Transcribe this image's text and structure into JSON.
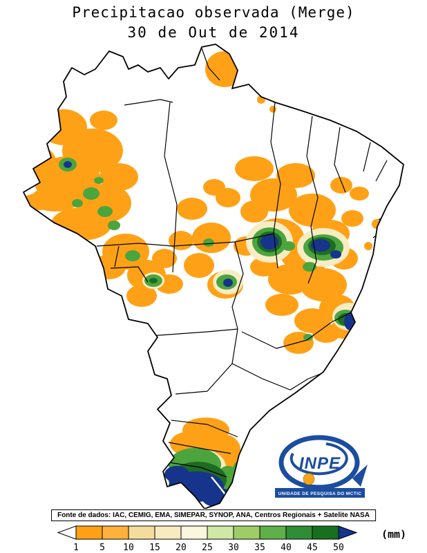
{
  "title": {
    "line1": "Precipitacao observada (Merge)",
    "line2": "30 de Out de 2014"
  },
  "source_note": "Fonte de dados: IAC, CEMIG, EMA, SIMEPAR, SYNOP, ANA, Centros Regionais + Satelite NASA",
  "legend": {
    "unit": "(mm)",
    "tick_labels": [
      "1",
      "5",
      "10",
      "15",
      "20",
      "25",
      "30",
      "35",
      "40",
      "45",
      "50"
    ],
    "segment_colors": [
      "#FFA117",
      "#FFB13B",
      "#F4DC9C",
      "#F8EBC0",
      "#FCF6DF",
      "#CFE8A4",
      "#9ECD67",
      "#5FB048",
      "#2F8D35",
      "#17701F"
    ],
    "overflow_color": "#16348C",
    "underflow_color": "#FFFFFF"
  },
  "map_colors": {
    "light_rain_orange": "#FFA117",
    "pale_yellow": "#F7ECC3",
    "moderate_green": "#4BA53C",
    "heavy_dark_green": "#1E6B24",
    "extreme_navy": "#16348C",
    "border_black": "#000000",
    "background_white": "#FFFFFF"
  },
  "logo": {
    "name": "INPE",
    "banner": "UNIDADE DE PESQUISA DO MCTIC",
    "blue": "#1B4DA0",
    "yellow": "#F2A51B"
  }
}
